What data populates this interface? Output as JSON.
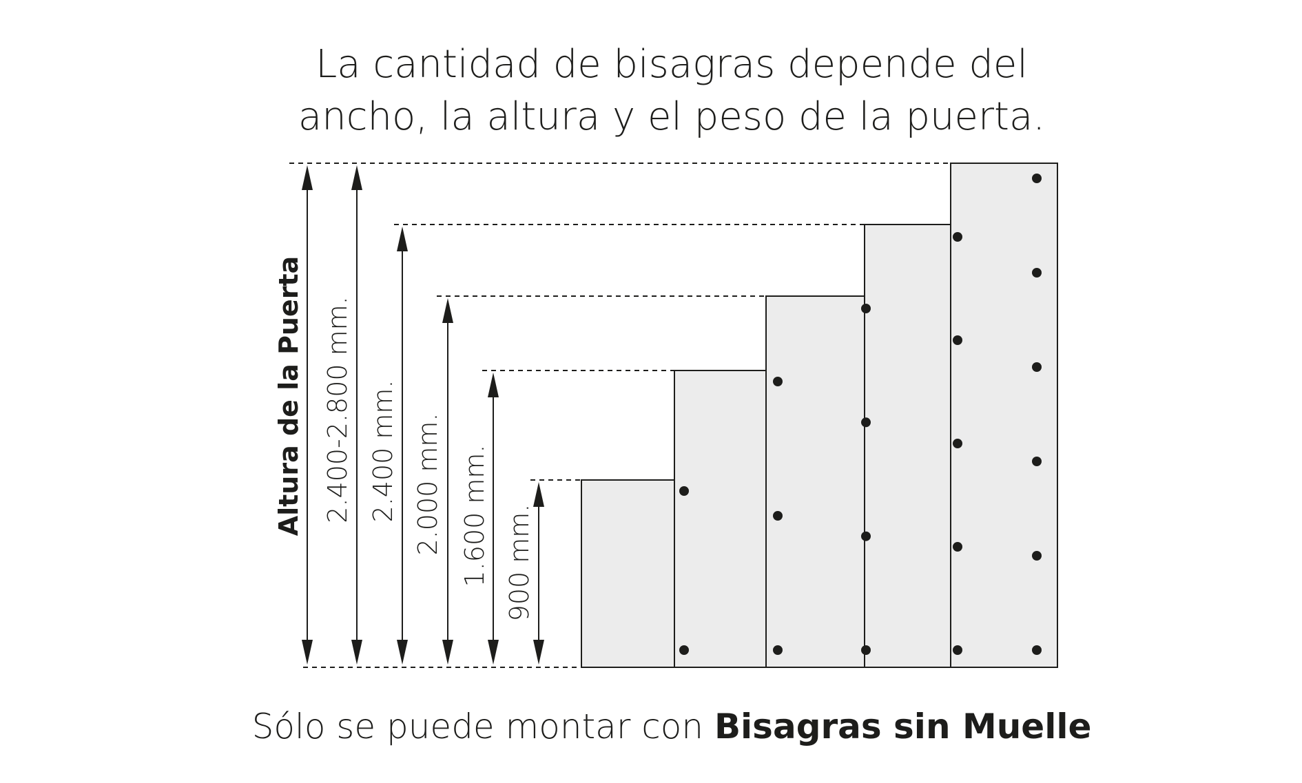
{
  "title": {
    "line1": "La cantidad de bisagras depende del",
    "line2": "ancho, la altura y el peso de la puerta."
  },
  "axis_label": "Altura de la Puerta",
  "dimensions": [
    {
      "label": "2.400-2.800 mm."
    },
    {
      "label": "2.400 mm."
    },
    {
      "label": "2.000 mm."
    },
    {
      "label": "1.600 mm."
    },
    {
      "label": "900 mm."
    }
  ],
  "doors": [
    {
      "height_mm": 900,
      "hinges": 2
    },
    {
      "height_mm": 1600,
      "hinges": 3
    },
    {
      "height_mm": 2000,
      "hinges": 4
    },
    {
      "height_mm": 2400,
      "hinges": 5
    },
    {
      "height_mm": 2800,
      "hinges": 6
    }
  ],
  "footer": {
    "regular": "Sólo se puede montar con ",
    "bold": "Bisagras sin Muelle"
  },
  "colors": {
    "door_fill": "#ececec",
    "ink": "#1d1d1b"
  }
}
